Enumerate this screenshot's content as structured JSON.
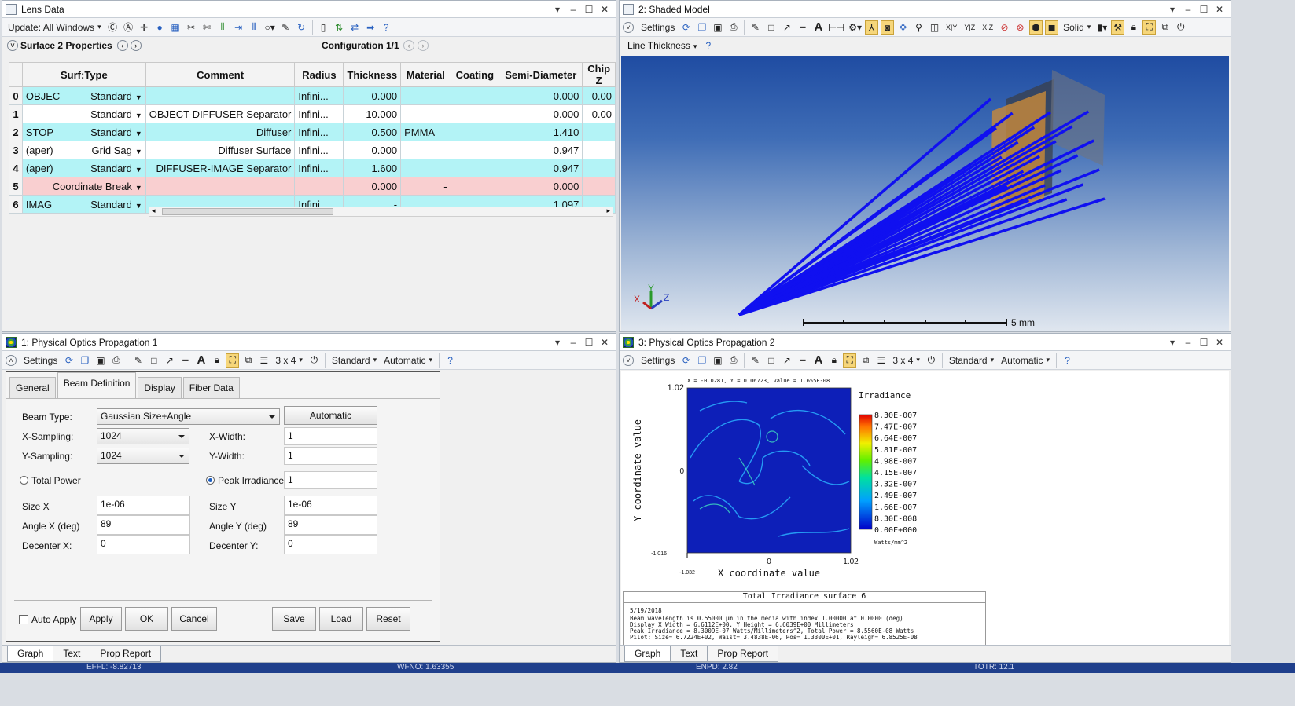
{
  "lens_data": {
    "title": "Lens Data",
    "update_label": "Update: All Windows",
    "surface_properties": "Surface 2 Properties",
    "configuration": "Configuration 1/1",
    "columns": [
      "Surf:Type",
      "Comment",
      "Radius",
      "Thickness",
      "Material",
      "Coating",
      "Semi-Diameter",
      "Chip Z"
    ],
    "rows": [
      {
        "num": "0",
        "label": "OBJEC",
        "type": "Standard",
        "comment": "",
        "radius": "Infini...",
        "thickness": "0.000",
        "material": "",
        "coating": "",
        "semi": "0.000",
        "chip": "0.00",
        "style": "cy"
      },
      {
        "num": "1",
        "label": "",
        "type": "Standard",
        "comment": "OBJECT-DIFFUSER Separator",
        "radius": "Infini...",
        "thickness": "10.000",
        "material": "",
        "coating": "",
        "semi": "0.000",
        "chip": "0.00",
        "style": "wh"
      },
      {
        "num": "2",
        "label": "STOP",
        "type": "Standard",
        "comment": "Diffuser",
        "radius": "Infini...",
        "thickness": "0.500",
        "material": "PMMA",
        "coating": "",
        "semi": "1.410",
        "chip": "",
        "style": "cy"
      },
      {
        "num": "3",
        "label": "(aper)",
        "type": "Grid Sag",
        "comment": "Diffuser Surface",
        "radius": "Infini...",
        "thickness": "0.000",
        "material": "",
        "coating": "",
        "semi": "0.947",
        "chip": "",
        "style": "wh"
      },
      {
        "num": "4",
        "label": "(aper)",
        "type": "Standard",
        "comment": "DIFFUSER-IMAGE Separator",
        "radius": "Infini...",
        "thickness": "1.600",
        "material": "",
        "coating": "",
        "semi": "0.947",
        "chip": "",
        "style": "cy"
      },
      {
        "num": "5",
        "label": "",
        "type": "Coordinate Break",
        "comment": "",
        "radius": "",
        "thickness": "0.000",
        "material": "-",
        "coating": "",
        "semi": "0.000",
        "chip": "",
        "style": "pk"
      },
      {
        "num": "6",
        "label": "IMAG",
        "type": "Standard",
        "comment": "",
        "radius": "Infini...",
        "thickness": "-",
        "material": "",
        "coating": "",
        "semi": "1.097",
        "chip": "",
        "style": "cy"
      }
    ]
  },
  "shaded_model": {
    "title": "2: Shaded Model",
    "settings": "Settings",
    "xy": "X|Y",
    "yz": "Y|Z",
    "xz": "X|Z",
    "solid": "Solid",
    "line_thickness": "Line Thickness",
    "scale_label": "5 mm",
    "axis_x": "X",
    "axis_y": "Y",
    "axis_z": "Z"
  },
  "pop1": {
    "title": "1: Physical Optics Propagation 1",
    "settings": "Settings",
    "layout": "3 x 4",
    "standard": "Standard",
    "automatic": "Automatic",
    "tabs": [
      "General",
      "Beam Definition",
      "Display",
      "Fiber Data"
    ],
    "form": {
      "beam_type_label": "Beam Type:",
      "beam_type_value": "Gaussian Size+Angle",
      "automatic_button": "Automatic",
      "x_sampling_label": "X-Sampling:",
      "x_sampling_value": "1024",
      "y_sampling_label": "Y-Sampling:",
      "y_sampling_value": "1024",
      "x_width_label": "X-Width:",
      "x_width_value": "1",
      "y_width_label": "Y-Width:",
      "y_width_value": "1",
      "total_power_label": "Total Power",
      "peak_irradiance_label": "Peak Irradiance",
      "peak_irradiance_value": "1",
      "size_x_label": "Size X",
      "size_x_value": "1e-06",
      "size_y_label": "Size Y",
      "size_y_value": "1e-06",
      "angle_x_label": "Angle X (deg)",
      "angle_x_value": "89",
      "angle_y_label": "Angle Y (deg)",
      "angle_y_value": "89",
      "decenter_x_label": "Decenter X:",
      "decenter_x_value": "0",
      "decenter_y_label": "Decenter Y:",
      "decenter_y_value": "0",
      "auto_apply": "Auto Apply",
      "apply": "Apply",
      "ok": "OK",
      "cancel": "Cancel",
      "save": "Save",
      "load": "Load",
      "reset": "Reset"
    },
    "bottom_tabs": [
      "Graph",
      "Text",
      "Prop Report"
    ]
  },
  "pop2": {
    "title": "3: Physical Optics Propagation 2",
    "settings": "Settings",
    "layout": "3 x 4",
    "standard": "Standard",
    "automatic": "Automatic",
    "cursor_readout": "X = -0.0281, Y = 0.06723, Value = 1.655E-08",
    "y_top": "1.02",
    "y_mid": "0",
    "y_bot": "-1.016",
    "x_left": "-1.032",
    "x_mid": "0",
    "x_right": "1.02",
    "ylabel": "Y coordinate value",
    "xlabel": "X coordinate value",
    "legend_title": "Irradiance",
    "legend_values": [
      "8.30E-007",
      "7.47E-007",
      "6.64E-007",
      "5.81E-007",
      "4.98E-007",
      "4.15E-007",
      "3.32E-007",
      "2.49E-007",
      "1.66E-007",
      "8.30E-008",
      "0.00E+000"
    ],
    "legend_units": "Watts/mm^2",
    "info_title": "Total Irradiance surface 6",
    "info_lines": [
      "5/19/2018",
      "Beam wavelength is 0.55000 μm in the media with index 1.00000 at 0.0000 (deg)",
      "Display X Width = 6.6112E+00, Y Height = 6.6039E+00 Millimeters",
      "Peak Irradiance = 8.3009E-07 Watts/Millimeters^2, Total Power = 8.5560E-08 Watts",
      "Pilot: Size= 6.7224E+02, Waist= 3.4838E-06, Pos= 1.3300E+01, Rayleigh= 6.8525E-08"
    ],
    "bottom_tabs": [
      "Graph",
      "Text",
      "Prop Report"
    ]
  },
  "status": {
    "effl": "EFFL: -8.82713",
    "wfno": "WFNO: 1.63355",
    "enpd": "ENPD: 2.82",
    "totr": "TOTR: 12.1"
  }
}
